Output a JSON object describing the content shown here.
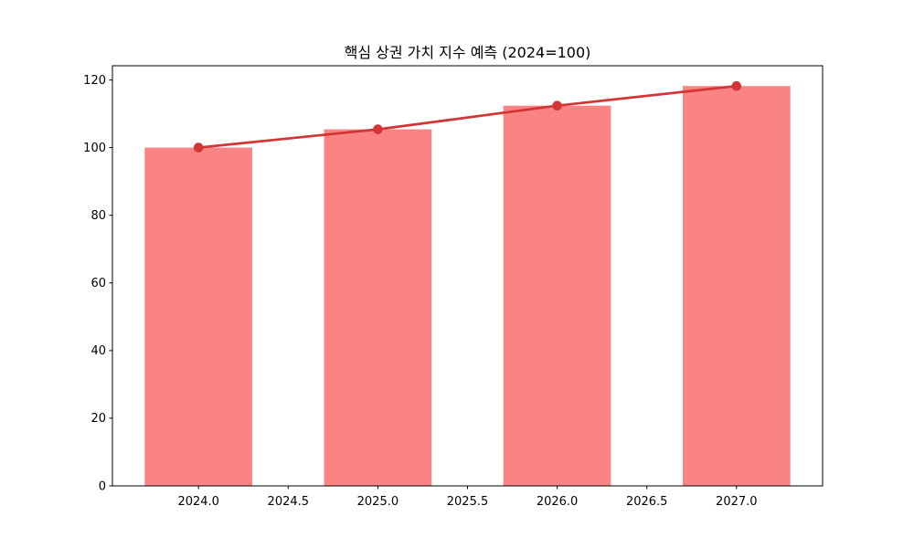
{
  "figure": {
    "background": "#ffffff"
  },
  "chart_data": {
    "type": "bar",
    "overlay": "line",
    "title": "핵심 상권 가치 지수 예측 (2024=100)",
    "xlabel": "",
    "ylabel": "",
    "x": [
      2024,
      2025,
      2026,
      2027
    ],
    "values": [
      100,
      105.4,
      112.4,
      118.2
    ],
    "line_values": [
      100,
      105.4,
      112.4,
      118.2
    ],
    "bar_width": 0.6,
    "xlim": [
      2023.52,
      2027.48
    ],
    "ylim": [
      0,
      124.2
    ],
    "xticks": {
      "values": [
        2024.0,
        2024.5,
        2025.0,
        2025.5,
        2026.0,
        2026.5,
        2027.0
      ],
      "labels": [
        "2024.0",
        "2024.5",
        "2025.0",
        "2025.5",
        "2026.0",
        "2026.5",
        "2027.0"
      ]
    },
    "yticks": {
      "values": [
        0,
        20,
        40,
        60,
        80,
        100,
        120
      ],
      "labels": [
        "0",
        "20",
        "40",
        "60",
        "80",
        "100",
        "120"
      ]
    },
    "grid": false,
    "legend": false,
    "colors": {
      "bar": "#FA8383",
      "line": "#D33434",
      "marker": "#D33434",
      "spine": "#000000",
      "tick": "#000000",
      "text": "#000000"
    }
  }
}
